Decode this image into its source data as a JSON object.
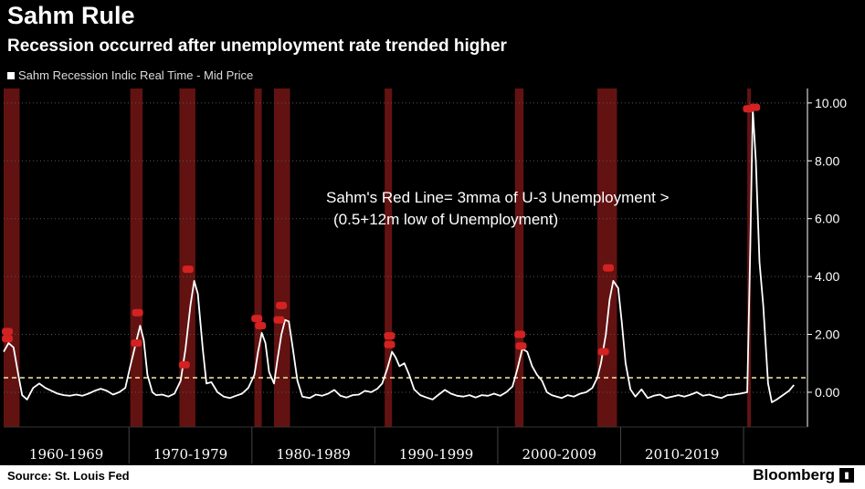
{
  "header": {
    "title": "Sahm Rule",
    "subtitle": "Recession occurred after unemployment rate trended higher",
    "legend_label": "Sahm Recession Indic Real Time - Mid Price"
  },
  "footer": {
    "source": "Source: St. Louis Fed",
    "brand": "Bloomberg"
  },
  "chart_data": {
    "type": "line",
    "series": [
      {
        "name": "Sahm Recession Indic Real Time - Mid Price",
        "color": "#ffffff",
        "points": [
          [
            1959.6,
            1.4
          ],
          [
            1960.0,
            1.7
          ],
          [
            1960.4,
            1.55
          ],
          [
            1960.8,
            0.6
          ],
          [
            1961.1,
            -0.1
          ],
          [
            1961.5,
            -0.25
          ],
          [
            1962.0,
            0.15
          ],
          [
            1962.5,
            0.3
          ],
          [
            1963.0,
            0.15
          ],
          [
            1963.5,
            0.05
          ],
          [
            1964.0,
            -0.05
          ],
          [
            1964.5,
            -0.1
          ],
          [
            1965.0,
            -0.12
          ],
          [
            1965.5,
            -0.08
          ],
          [
            1966.0,
            -0.12
          ],
          [
            1966.5,
            -0.05
          ],
          [
            1967.0,
            0.05
          ],
          [
            1967.5,
            0.12
          ],
          [
            1968.0,
            0.05
          ],
          [
            1968.5,
            -0.08
          ],
          [
            1969.0,
            0.0
          ],
          [
            1969.5,
            0.15
          ],
          [
            1969.9,
            0.9
          ],
          [
            1970.3,
            1.6
          ],
          [
            1970.7,
            2.3
          ],
          [
            1971.0,
            1.8
          ],
          [
            1971.3,
            0.6
          ],
          [
            1971.7,
            0.0
          ],
          [
            1972.0,
            -0.1
          ],
          [
            1972.5,
            -0.08
          ],
          [
            1973.0,
            -0.15
          ],
          [
            1973.5,
            -0.05
          ],
          [
            1974.0,
            0.4
          ],
          [
            1974.4,
            1.5
          ],
          [
            1974.8,
            3.0
          ],
          [
            1975.1,
            3.85
          ],
          [
            1975.4,
            3.4
          ],
          [
            1975.8,
            1.5
          ],
          [
            1976.1,
            0.3
          ],
          [
            1976.5,
            0.35
          ],
          [
            1977.0,
            0.0
          ],
          [
            1977.5,
            -0.15
          ],
          [
            1978.0,
            -0.2
          ],
          [
            1978.5,
            -0.12
          ],
          [
            1979.0,
            -0.05
          ],
          [
            1979.5,
            0.15
          ],
          [
            1980.0,
            0.6
          ],
          [
            1980.3,
            1.4
          ],
          [
            1980.6,
            2.05
          ],
          [
            1980.9,
            1.7
          ],
          [
            1981.2,
            0.7
          ],
          [
            1981.6,
            0.3
          ],
          [
            1981.9,
            1.2
          ],
          [
            1982.2,
            2.0
          ],
          [
            1982.5,
            2.5
          ],
          [
            1982.8,
            2.45
          ],
          [
            1983.1,
            1.6
          ],
          [
            1983.5,
            0.4
          ],
          [
            1983.9,
            -0.15
          ],
          [
            1984.5,
            -0.2
          ],
          [
            1985.0,
            -0.08
          ],
          [
            1985.5,
            -0.12
          ],
          [
            1986.0,
            -0.05
          ],
          [
            1986.5,
            0.08
          ],
          [
            1987.0,
            -0.12
          ],
          [
            1987.5,
            -0.18
          ],
          [
            1988.0,
            -0.1
          ],
          [
            1988.5,
            -0.08
          ],
          [
            1989.0,
            0.05
          ],
          [
            1989.5,
            0.0
          ],
          [
            1990.0,
            0.12
          ],
          [
            1990.4,
            0.3
          ],
          [
            1990.8,
            0.8
          ],
          [
            1991.2,
            1.4
          ],
          [
            1991.5,
            1.2
          ],
          [
            1991.8,
            0.9
          ],
          [
            1992.2,
            1.0
          ],
          [
            1992.6,
            0.6
          ],
          [
            1993.0,
            0.1
          ],
          [
            1993.5,
            -0.1
          ],
          [
            1994.0,
            -0.18
          ],
          [
            1994.5,
            -0.25
          ],
          [
            1995.0,
            -0.08
          ],
          [
            1995.5,
            0.08
          ],
          [
            1996.0,
            -0.05
          ],
          [
            1996.5,
            -0.12
          ],
          [
            1997.0,
            -0.15
          ],
          [
            1997.5,
            -0.1
          ],
          [
            1998.0,
            -0.18
          ],
          [
            1998.5,
            -0.1
          ],
          [
            1999.0,
            -0.12
          ],
          [
            1999.5,
            -0.05
          ],
          [
            2000.0,
            -0.12
          ],
          [
            2000.5,
            0.0
          ],
          [
            2001.0,
            0.2
          ],
          [
            2001.4,
            0.8
          ],
          [
            2001.8,
            1.5
          ],
          [
            2002.2,
            1.4
          ],
          [
            2002.6,
            0.9
          ],
          [
            2003.0,
            0.6
          ],
          [
            2003.4,
            0.4
          ],
          [
            2003.8,
            0.0
          ],
          [
            2004.2,
            -0.1
          ],
          [
            2004.6,
            -0.15
          ],
          [
            2005.0,
            -0.2
          ],
          [
            2005.5,
            -0.1
          ],
          [
            2006.0,
            -0.15
          ],
          [
            2006.5,
            -0.05
          ],
          [
            2007.0,
            0.0
          ],
          [
            2007.5,
            0.15
          ],
          [
            2007.9,
            0.5
          ],
          [
            2008.2,
            1.0
          ],
          [
            2008.6,
            2.0
          ],
          [
            2008.9,
            3.2
          ],
          [
            2009.2,
            3.85
          ],
          [
            2009.6,
            3.6
          ],
          [
            2009.9,
            2.4
          ],
          [
            2010.2,
            1.0
          ],
          [
            2010.6,
            0.1
          ],
          [
            2011.0,
            -0.15
          ],
          [
            2011.5,
            0.1
          ],
          [
            2012.0,
            -0.2
          ],
          [
            2012.5,
            -0.12
          ],
          [
            2013.0,
            -0.08
          ],
          [
            2013.5,
            -0.2
          ],
          [
            2014.0,
            -0.15
          ],
          [
            2014.5,
            -0.1
          ],
          [
            2015.0,
            -0.15
          ],
          [
            2015.5,
            -0.08
          ],
          [
            2016.0,
            0.0
          ],
          [
            2016.5,
            -0.12
          ],
          [
            2017.0,
            -0.08
          ],
          [
            2017.5,
            -0.15
          ],
          [
            2018.0,
            -0.2
          ],
          [
            2018.5,
            -0.1
          ],
          [
            2019.0,
            -0.08
          ],
          [
            2019.5,
            -0.05
          ],
          [
            2020.1,
            0.0
          ],
          [
            2020.35,
            5.0
          ],
          [
            2020.55,
            9.8
          ],
          [
            2020.8,
            8.0
          ],
          [
            2021.1,
            4.5
          ],
          [
            2021.4,
            3.0
          ],
          [
            2021.8,
            0.3
          ],
          [
            2022.1,
            -0.35
          ],
          [
            2022.5,
            -0.25
          ],
          [
            2023.0,
            -0.1
          ],
          [
            2023.5,
            0.05
          ],
          [
            2023.9,
            0.25
          ]
        ]
      }
    ],
    "recessions": [
      [
        1959.6,
        1960.9
      ],
      [
        1969.9,
        1970.9
      ],
      [
        1973.9,
        1975.2
      ],
      [
        1980.0,
        1980.6
      ],
      [
        1981.6,
        1982.9
      ],
      [
        1990.6,
        1991.2
      ],
      [
        2001.2,
        2001.9
      ],
      [
        2007.9,
        2009.5
      ],
      [
        2020.1,
        2020.4
      ]
    ],
    "threshold": 0.5,
    "ylim": [
      -1.2,
      10.5
    ],
    "xlim": [
      1959.6,
      2025.0
    ],
    "yticks": [
      0,
      2,
      4,
      6,
      8,
      10
    ],
    "ytick_labels": [
      "0.00",
      "2.00",
      "4.00",
      "6.00",
      "8.00",
      "10.00"
    ],
    "periods": [
      "1960-1969",
      "1970-1979",
      "1980-1989",
      "1990-1999",
      "2000-2009",
      "2010-2019"
    ],
    "period_bounds": [
      1959.6,
      1969.8,
      1979.8,
      1989.8,
      1999.8,
      2009.8,
      2019.8
    ],
    "annotation": [
      "Sahm's Red Line= 3mma of U-3 Unemployment >",
      "(0.5+12m low of Unemployment)"
    ],
    "grid": true,
    "legend_position": "top-left"
  }
}
